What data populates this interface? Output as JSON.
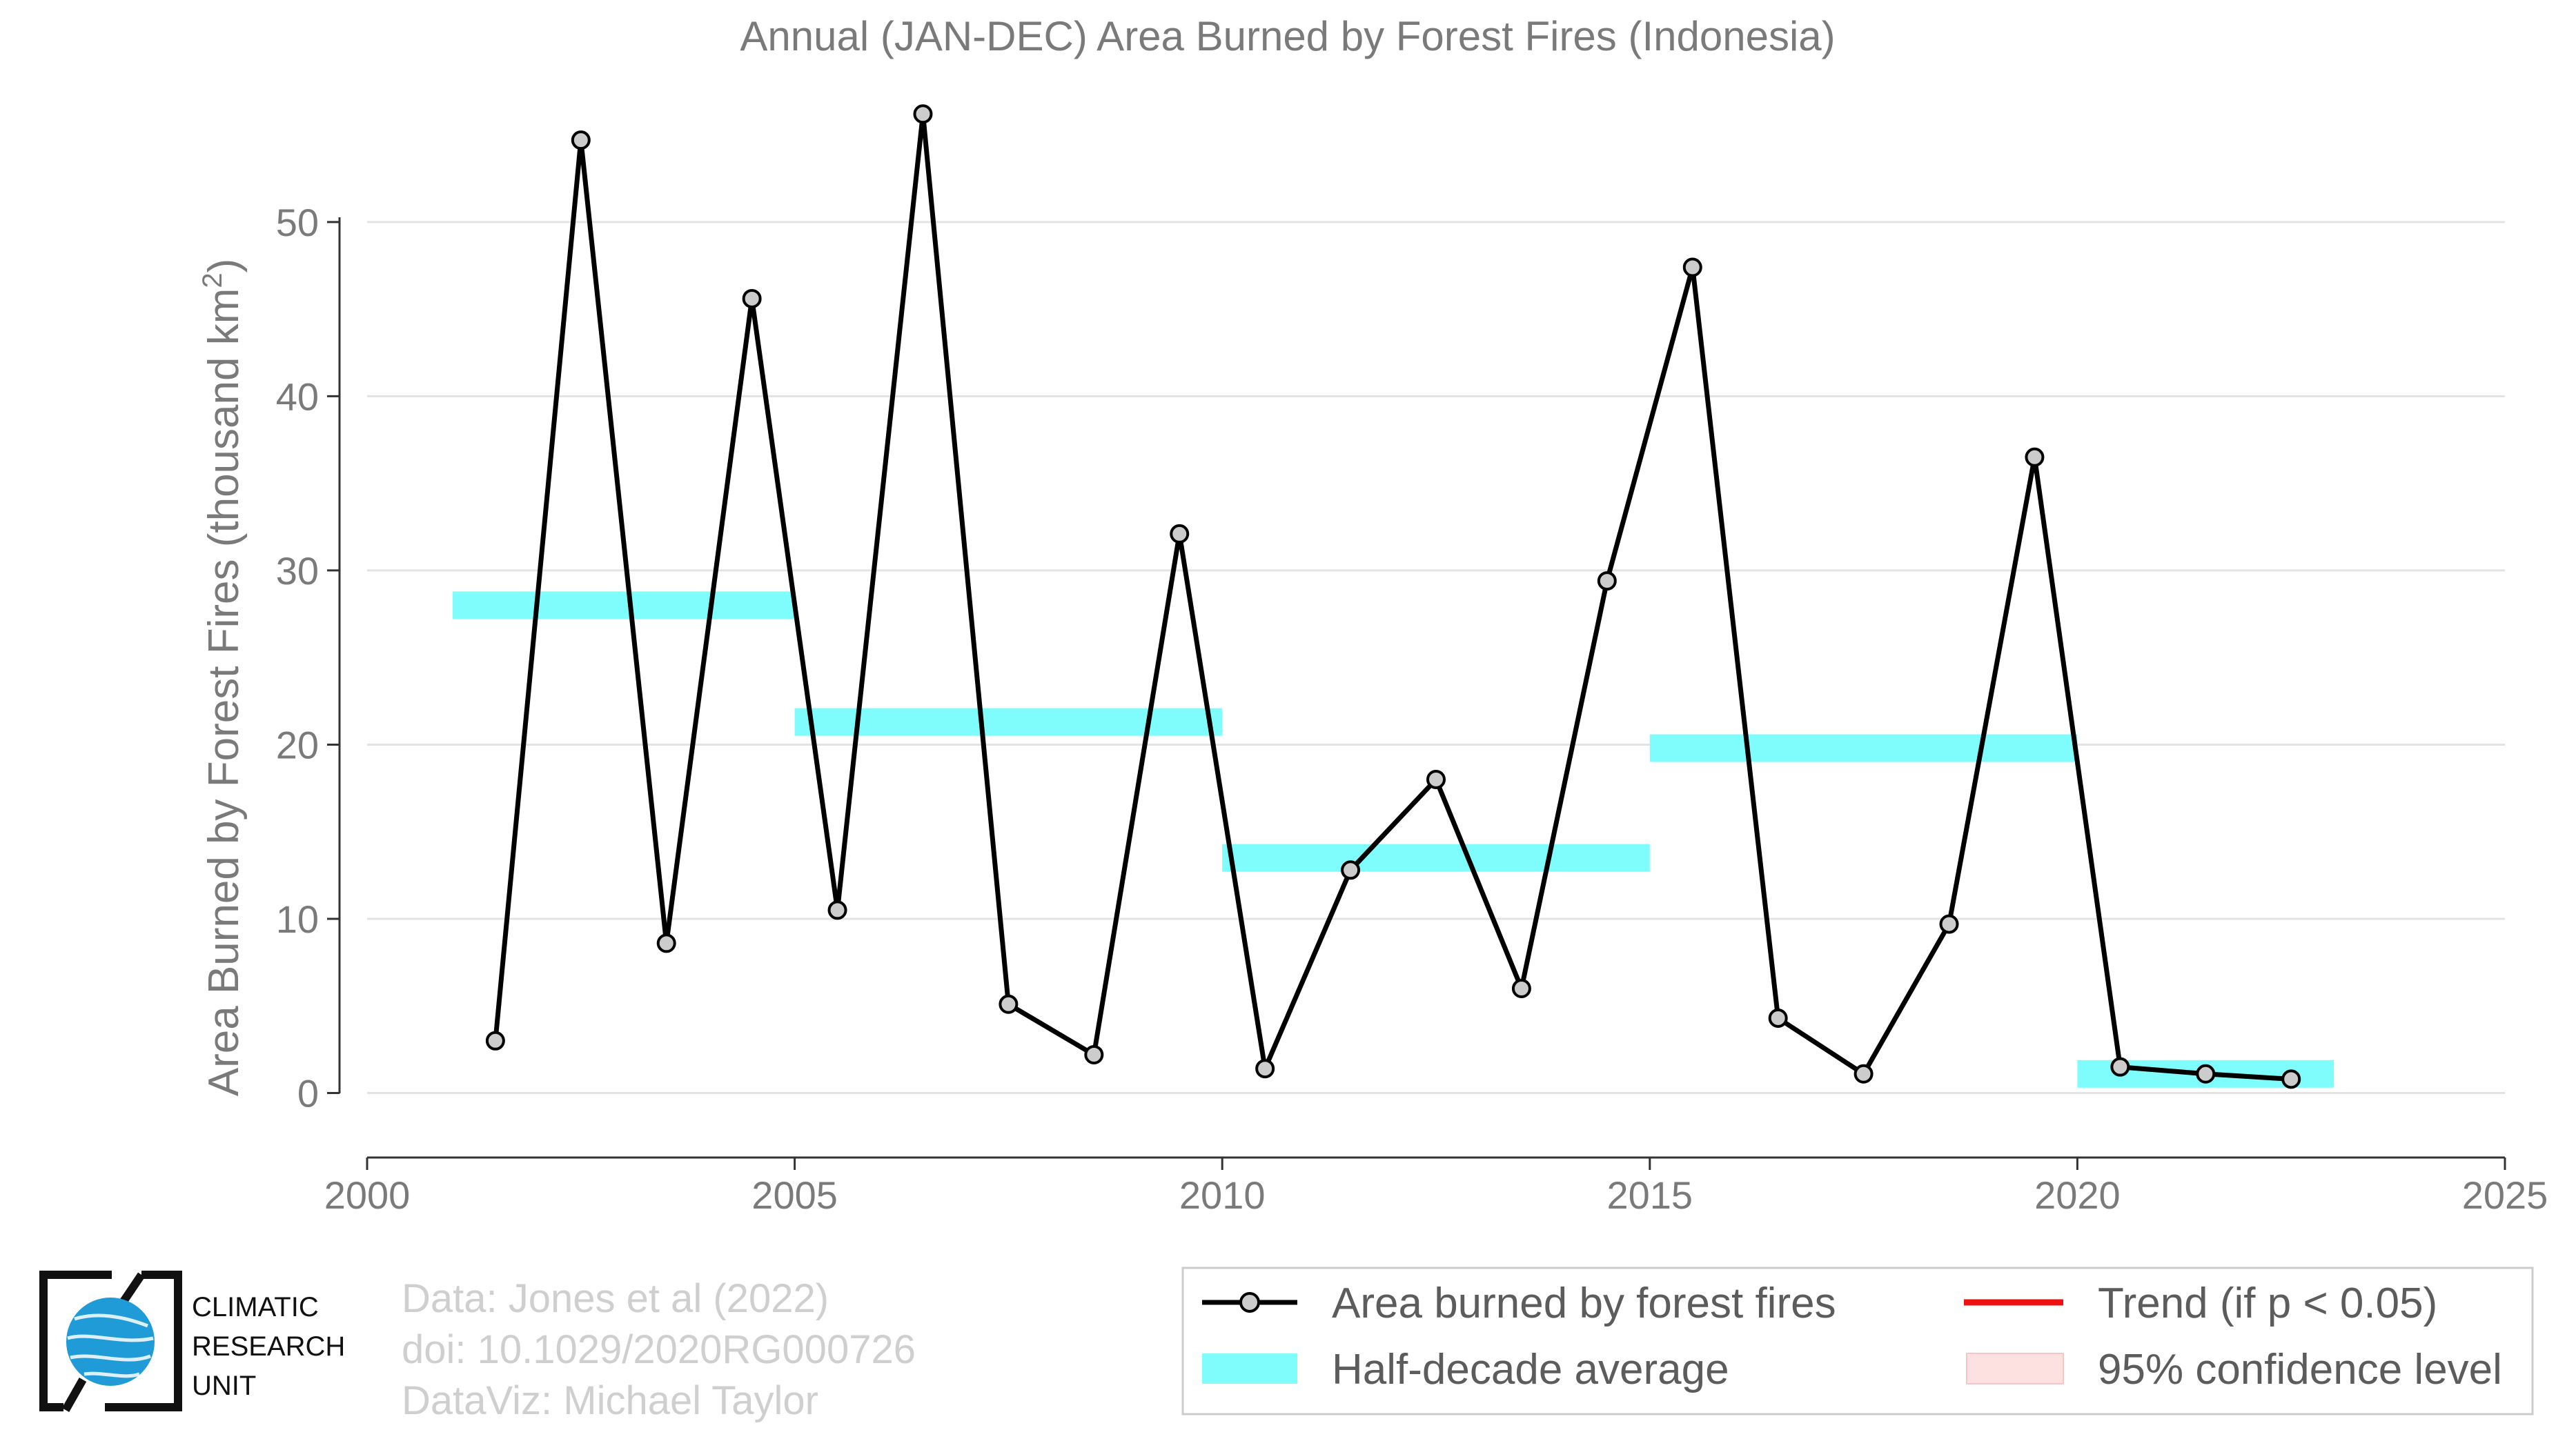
{
  "chart_data": {
    "type": "line",
    "title": "Annual (JAN-DEC) Area Burned by Forest Fires (Indonesia)",
    "ylabel_main": "Area Burned by Forest Fires (thousand km",
    "ylabel_sup": "2",
    "ylabel_end": ")",
    "xlabel": "",
    "xlim": [
      2000,
      2025
    ],
    "ylim": [
      -3.7,
      57.2
    ],
    "xticks": [
      2000,
      2005,
      2010,
      2015,
      2020,
      2025
    ],
    "yticks": [
      0,
      10,
      20,
      30,
      40,
      50
    ],
    "grid": "horizontal",
    "series": [
      {
        "name": "Area burned by forest fires",
        "color": "#000000",
        "marker_fill": "#cccccc",
        "x": [
          2001.5,
          2002.5,
          2003.5,
          2004.5,
          2005.5,
          2006.5,
          2007.5,
          2008.5,
          2009.5,
          2010.5,
          2011.5,
          2012.5,
          2013.5,
          2014.5,
          2015.5,
          2016.5,
          2017.5,
          2018.5,
          2019.5,
          2020.5,
          2021.5,
          2022.5
        ],
        "y": [
          3.0,
          54.7,
          8.6,
          45.6,
          10.5,
          56.2,
          5.1,
          2.2,
          32.1,
          1.4,
          12.8,
          18.0,
          6.0,
          29.4,
          47.4,
          4.3,
          1.1,
          9.7,
          36.5,
          1.5,
          1.1,
          0.8
        ]
      }
    ],
    "half_decade_average": {
      "name": "Half-decade average",
      "color": "#7ffcfc",
      "segments": [
        {
          "start": 2001,
          "end": 2005,
          "value": 28.0
        },
        {
          "start": 2005,
          "end": 2010,
          "value": 21.3
        },
        {
          "start": 2010,
          "end": 2015,
          "value": 13.5
        },
        {
          "start": 2015,
          "end": 2020,
          "value": 19.8
        },
        {
          "start": 2020,
          "end": 2023,
          "value": 1.1
        }
      ]
    },
    "legend": {
      "placement": "bottom-right",
      "entries": [
        {
          "label": "Area burned by forest fires",
          "type": "line-marker",
          "color": "#000000"
        },
        {
          "label": "Trend (if p < 0.05)",
          "type": "line",
          "color": "#ee1111"
        },
        {
          "label": "Half-decade average",
          "type": "band",
          "color": "#7ffcfc"
        },
        {
          "label": "95% confidence level",
          "type": "band",
          "color": "#fde0e0"
        }
      ]
    }
  },
  "credits": {
    "line1": "Data: Jones et al (2022)",
    "line2": "doi: 10.1029/2020RG000726",
    "line3": "DataViz: Michael Taylor"
  },
  "logo": {
    "line1": "CLIMATIC",
    "line2": "RESEARCH",
    "line3": "UNIT",
    "globe_color": "#1f9bd7"
  }
}
